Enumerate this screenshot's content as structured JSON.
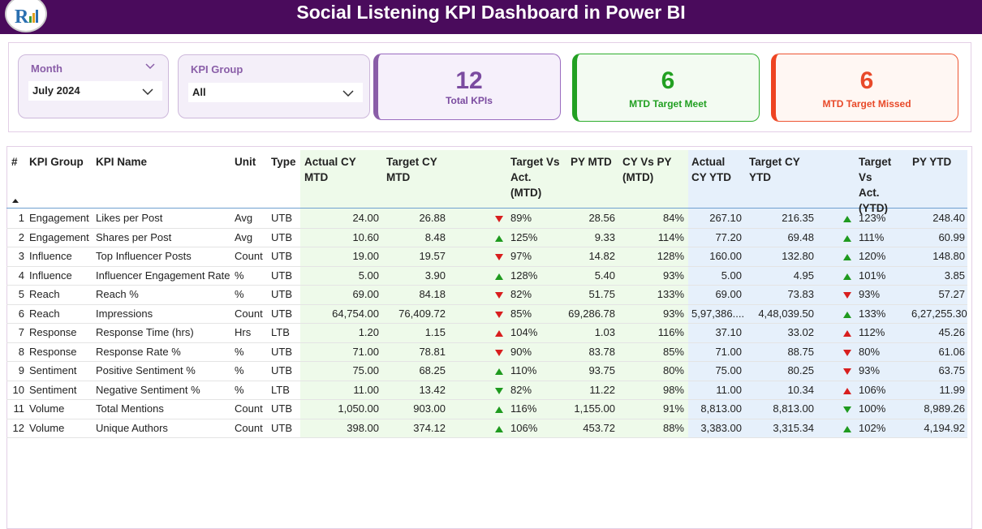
{
  "header": {
    "title": "Social Listening KPI Dashboard in Power BI"
  },
  "slicers": [
    {
      "label": "Month",
      "value": "July 2024"
    },
    {
      "label": "KPI Group",
      "value": "All"
    }
  ],
  "cards": [
    {
      "value": 12,
      "label": "Total KPIs"
    },
    {
      "value": 6,
      "label": "MTD Target Meet"
    },
    {
      "value": 6,
      "label": "MTD Target Missed"
    }
  ],
  "table": {
    "columns": [
      "#",
      "KPI Group",
      "KPI Name",
      "Unit",
      "Type",
      "Actual CY MTD",
      "Target CY MTD",
      "Target Vs Act. (MTD)",
      "PY MTD",
      "CY Vs PY (MTD)",
      "Actual CY YTD",
      "Target CY YTD",
      "Target Vs Act. (YTD)",
      "PY YTD"
    ],
    "rows": [
      [
        "1",
        "Engagement",
        "Likes per Post",
        "Avg",
        "UTB",
        "24.00",
        "26.88",
        "89%",
        "28.56",
        "84%",
        "267.10",
        "216.35",
        "123%",
        "248.40"
      ],
      [
        "2",
        "Engagement",
        "Shares per Post",
        "Avg",
        "UTB",
        "10.60",
        "8.48",
        "125%",
        "9.33",
        "114%",
        "77.20",
        "69.48",
        "111%",
        "60.99"
      ],
      [
        "3",
        "Influence",
        "Top Influencer Posts",
        "Count",
        "UTB",
        "19.00",
        "19.57",
        "97%",
        "14.82",
        "128%",
        "160.00",
        "132.80",
        "120%",
        "148.80"
      ],
      [
        "4",
        "Influence",
        "Influencer Engagement Rate",
        "%",
        "UTB",
        "5.00",
        "3.90",
        "128%",
        "5.40",
        "93%",
        "5.00",
        "4.95",
        "101%",
        "3.85"
      ],
      [
        "5",
        "Reach",
        "Reach %",
        "%",
        "UTB",
        "69.00",
        "84.18",
        "82%",
        "51.75",
        "133%",
        "69.00",
        "73.83",
        "93%",
        "57.27"
      ],
      [
        "6",
        "Reach",
        "Impressions",
        "Count",
        "UTB",
        "64,754.00",
        "76,409.72",
        "85%",
        "69,286.78",
        "93%",
        "5,97,386....",
        "4,48,039.50",
        "133%",
        "6,27,255.30"
      ],
      [
        "7",
        "Response",
        "Response Time (hrs)",
        "Hrs",
        "LTB",
        "1.20",
        "1.15",
        "104%",
        "1.03",
        "116%",
        "37.10",
        "33.02",
        "112%",
        "45.26"
      ],
      [
        "8",
        "Response",
        "Response Rate %",
        "%",
        "UTB",
        "71.00",
        "78.81",
        "90%",
        "83.78",
        "85%",
        "71.00",
        "88.75",
        "80%",
        "61.06"
      ],
      [
        "9",
        "Sentiment",
        "Positive Sentiment %",
        "%",
        "UTB",
        "75.00",
        "68.25",
        "110%",
        "93.75",
        "80%",
        "75.00",
        "80.25",
        "93%",
        "63.75"
      ],
      [
        "10",
        "Sentiment",
        "Negative Sentiment %",
        "%",
        "LTB",
        "11.00",
        "13.42",
        "82%",
        "11.22",
        "98%",
        "11.00",
        "10.34",
        "106%",
        "11.99"
      ],
      [
        "11",
        "Volume",
        "Total Mentions",
        "Count",
        "UTB",
        "1,050.00",
        "903.00",
        "116%",
        "1,155.00",
        "91%",
        "8,813.00",
        "8,813.00",
        "100%",
        "8,989.26"
      ],
      [
        "12",
        "Volume",
        "Unique Authors",
        "Count",
        "UTB",
        "398.00",
        "374.12",
        "106%",
        "453.72",
        "88%",
        "3,383.00",
        "3,315.34",
        "102%",
        "4,194.92"
      ]
    ]
  }
}
